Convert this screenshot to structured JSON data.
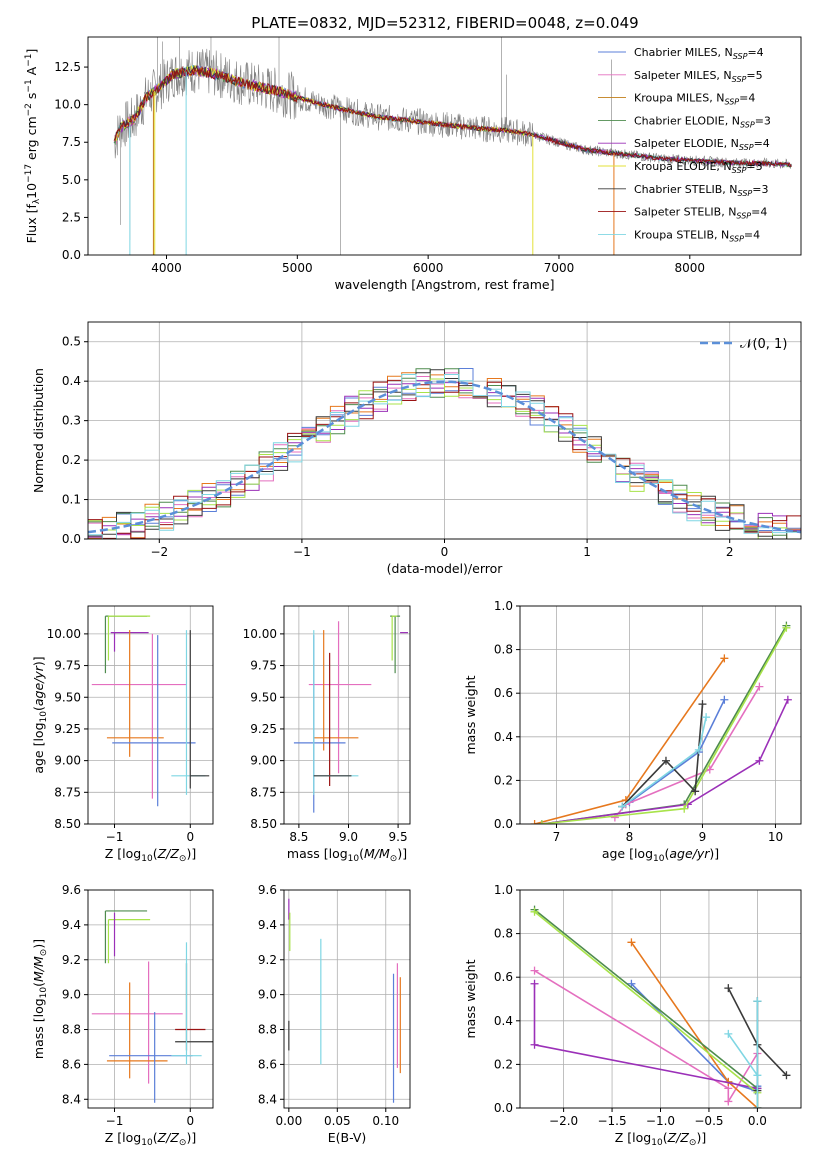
{
  "figure": {
    "title": "PLATE=0832, MJD=52312, FIBERID=0048, z=0.049"
  },
  "colors": {
    "Chabrier MILES": "#5b7fd8",
    "Salpeter MILES": "#e46fbf",
    "Kroupa MILES": "#c07d17",
    "Chabrier ELODIE": "#4e8b4e",
    "Salpeter ELODIE": "#9b30b8",
    "Kroupa ELODIE": "#e3e13a",
    "Chabrier STELIB": "#3a3a3a",
    "Salpeter STELIB": "#9a1313",
    "Kroupa STELIB": "#7fd6e3",
    "data": "#808080",
    "orange": "#e6781e",
    "lime": "#a8e34a",
    "gaussian": "#5b8fd8"
  },
  "chart_data": [
    {
      "id": "spectrum",
      "type": "line",
      "xlabel": "wavelength [Angstrom, rest frame]",
      "ylabel": "Flux [f_λ10^-17 erg cm^-2 s^-1 A^-1]",
      "xlim": [
        3400,
        8850
      ],
      "ylim": [
        0,
        14.5
      ],
      "xticks": [
        4000,
        5000,
        6000,
        7000,
        8000
      ],
      "yticks": [
        0.0,
        2.5,
        5.0,
        7.5,
        10.0,
        12.5
      ],
      "grid": false,
      "legend_position": "top-right",
      "continuum": [
        [
          3600,
          7.5
        ],
        [
          3650,
          8.5
        ],
        [
          3750,
          9.0
        ],
        [
          3850,
          10.5
        ],
        [
          3950,
          11.2
        ],
        [
          4050,
          12.0
        ],
        [
          4200,
          12.3
        ],
        [
          4400,
          12.0
        ],
        [
          4600,
          11.4
        ],
        [
          4800,
          11.0
        ],
        [
          5000,
          10.5
        ],
        [
          5200,
          10.0
        ],
        [
          5400,
          9.6
        ],
        [
          5600,
          9.2
        ],
        [
          5800,
          9.0
        ],
        [
          6000,
          8.8
        ],
        [
          6200,
          8.6
        ],
        [
          6400,
          8.4
        ],
        [
          6600,
          8.3
        ],
        [
          6800,
          8.0
        ],
        [
          7000,
          7.5
        ],
        [
          7200,
          7.0
        ],
        [
          7400,
          6.8
        ],
        [
          7600,
          6.6
        ],
        [
          7800,
          6.4
        ],
        [
          8000,
          6.3
        ],
        [
          8200,
          6.2
        ],
        [
          8400,
          6.1
        ],
        [
          8600,
          6.1
        ],
        [
          8780,
          6.0
        ]
      ],
      "legend": [
        {
          "name": "Chabrier MILES",
          "nssp": "4"
        },
        {
          "name": "Salpeter MILES",
          "nssp": "5"
        },
        {
          "name": "Kroupa MILES",
          "nssp": "4"
        },
        {
          "name": "Chabrier ELODIE",
          "nssp": "3"
        },
        {
          "name": "Salpeter ELODIE",
          "nssp": "4"
        },
        {
          "name": "Kroupa ELODIE",
          "nssp": "3"
        },
        {
          "name": "Chabrier STELIB",
          "nssp": "3"
        },
        {
          "name": "Salpeter STELIB",
          "nssp": "4"
        },
        {
          "name": "Kroupa STELIB",
          "nssp": "4"
        }
      ]
    },
    {
      "id": "residuals",
      "type": "line",
      "xlabel": "(data-model)/error",
      "ylabel": "Normed distribution",
      "xlim": [
        -2.5,
        2.5
      ],
      "ylim": [
        0,
        0.55
      ],
      "xticks": [
        -2,
        -1,
        0,
        1,
        2
      ],
      "yticks": [
        0.0,
        0.1,
        0.2,
        0.3,
        0.4,
        0.5
      ],
      "grid": true,
      "legend_position": "top-right",
      "legend_label": "𝒩(0, 1)",
      "bin_width": 0.1
    },
    {
      "id": "age_vs_Z",
      "type": "scatter",
      "xlabel": "Z [log10(Z/Z⊙)]",
      "ylabel": "age [log10(age/yr)]",
      "xlim": [
        -1.35,
        0.3
      ],
      "ylim": [
        8.5,
        10.22
      ],
      "xticks": [
        -1,
        0
      ],
      "yticks": [
        8.5,
        8.75,
        9.0,
        9.25,
        9.5,
        9.75,
        10.0
      ],
      "grid": true,
      "errorbars": [
        {
          "color": "Chabrier ELODIE",
          "x": -1.12,
          "y": 10.14,
          "x_err": [
            0,
            0.55
          ],
          "y_err": [
            0.45,
            0.0
          ]
        },
        {
          "color": "lime",
          "x": -1.08,
          "y": 10.14,
          "x_err": [
            0,
            0.55
          ],
          "y_err": [
            0.35,
            0.0
          ]
        },
        {
          "color": "Salpeter ELODIE",
          "x": -1.0,
          "y": 10.01,
          "x_err": [
            0.05,
            0.45
          ],
          "y_err": [
            0.15,
            0.0
          ]
        },
        {
          "color": "Salpeter MILES",
          "x": -0.5,
          "y": 9.6,
          "x_err": [
            0.8,
            0.45
          ],
          "y_err": [
            0.9,
            0.4
          ]
        },
        {
          "color": "orange",
          "x": -0.8,
          "y": 9.18,
          "x_err": [
            0.3,
            0.45
          ],
          "y_err": [
            0.15,
            0.85
          ]
        },
        {
          "color": "Chabrier MILES",
          "x": -0.43,
          "y": 9.14,
          "x_err": [
            0.6,
            0.5
          ],
          "y_err": [
            0.5,
            0.85
          ]
        },
        {
          "color": "Kroupa STELIB",
          "x": -0.05,
          "y": 8.88,
          "x_err": [
            0.2,
            0.25
          ],
          "y_err": [
            0.15,
            1.15
          ]
        },
        {
          "color": "Chabrier STELIB",
          "x": 0.0,
          "y": 8.88,
          "x_err": [
            0.0,
            0.25
          ],
          "y_err": [
            0.1,
            1.15
          ]
        }
      ]
    },
    {
      "id": "age_vs_mass",
      "type": "scatter",
      "xlabel": "mass [log10(M/M⊙)]",
      "xlim": [
        8.35,
        9.62
      ],
      "ylim": [
        8.5,
        10.22
      ],
      "xticks": [
        8.5,
        9.0,
        9.5
      ],
      "yticks": [
        8.5,
        8.75,
        9.0,
        9.25,
        9.5,
        9.75,
        10.0
      ],
      "grid": true,
      "errorbars": [
        {
          "color": "Chabrier ELODIE",
          "x": 9.47,
          "y": 10.14,
          "x_err": [
            0.05,
            0.05
          ],
          "y_err": [
            0.45,
            0.0
          ]
        },
        {
          "color": "lime",
          "x": 9.44,
          "y": 10.14,
          "x_err": [
            0.0,
            0.05
          ],
          "y_err": [
            0.35,
            0.0
          ]
        },
        {
          "color": "Salpeter ELODIE",
          "x": 9.52,
          "y": 10.01,
          "x_err": [
            0.0,
            0.08
          ],
          "y_err": [
            0.0,
            0.0
          ]
        },
        {
          "color": "Salpeter MILES",
          "x": 8.9,
          "y": 9.6,
          "x_err": [
            0.3,
            0.33
          ],
          "y_err": [
            0.7,
            0.5
          ]
        },
        {
          "color": "orange",
          "x": 8.75,
          "y": 9.18,
          "x_err": [
            0.1,
            0.35
          ],
          "y_err": [
            0.1,
            0.85
          ]
        },
        {
          "color": "Chabrier MILES",
          "x": 8.65,
          "y": 9.14,
          "x_err": [
            0.2,
            0.32
          ],
          "y_err": [
            0.55,
            0.85
          ]
        },
        {
          "color": "Salpeter STELIB",
          "x": 8.81,
          "y": 9.1,
          "x_err": [
            0.0,
            0.0
          ],
          "y_err": [
            0.3,
            0.75
          ]
        },
        {
          "color": "Kroupa STELIB",
          "x": 8.65,
          "y": 8.88,
          "x_err": [
            0.0,
            0.45
          ],
          "y_err": [
            0.15,
            1.15
          ]
        },
        {
          "color": "Chabrier STELIB",
          "x": 8.65,
          "y": 8.88,
          "x_err": [
            0.0,
            0.38
          ],
          "y_err": [
            0.0,
            0.0
          ]
        }
      ]
    },
    {
      "id": "weight_vs_age",
      "type": "line",
      "xlabel": "age [log10(age/yr)]",
      "ylabel": "mass weight",
      "xlim": [
        6.5,
        10.35
      ],
      "ylim": [
        0,
        1.0
      ],
      "xticks": [
        7,
        8,
        9,
        10
      ],
      "yticks": [
        0.0,
        0.2,
        0.4,
        0.6,
        0.8,
        1.0
      ],
      "grid": true,
      "series": [
        {
          "color": "Chabrier MILES",
          "x": [
            8.0,
            8.95,
            9.3
          ],
          "y": [
            0.1,
            0.33,
            0.57
          ]
        },
        {
          "color": "Salpeter MILES",
          "x": [
            7.8,
            7.95,
            9.1,
            9.78
          ],
          "y": [
            0.03,
            0.09,
            0.25,
            0.63
          ]
        },
        {
          "color": "orange",
          "x": [
            6.7,
            7.95,
            9.3
          ],
          "y": [
            0.0,
            0.11,
            0.76
          ]
        },
        {
          "color": "Chabrier ELODIE",
          "x": [
            6.8,
            8.75,
            10.15
          ],
          "y": [
            0.0,
            0.09,
            0.91
          ]
        },
        {
          "color": "Salpeter ELODIE",
          "x": [
            6.8,
            8.8,
            9.78,
            10.17
          ],
          "y": [
            0.0,
            0.09,
            0.29,
            0.57
          ]
        },
        {
          "color": "lime",
          "x": [
            6.8,
            8.75,
            10.15
          ],
          "y": [
            0.0,
            0.07,
            0.9
          ]
        },
        {
          "color": "Chabrier STELIB",
          "x": [
            7.9,
            8.5,
            8.9,
            9.0
          ],
          "y": [
            0.08,
            0.29,
            0.15,
            0.55
          ]
        },
        {
          "color": "Kroupa STELIB",
          "x": [
            7.9,
            8.95,
            9.05
          ],
          "y": [
            0.08,
            0.34,
            0.49
          ]
        }
      ]
    },
    {
      "id": "mass_vs_Z",
      "type": "scatter",
      "xlabel": "Z [log10(Z/Z⊙)]",
      "ylabel": "mass [log10(M/M⊙)]",
      "xlim": [
        -1.35,
        0.3
      ],
      "ylim": [
        8.35,
        9.6
      ],
      "xticks": [
        -1,
        0
      ],
      "yticks": [
        8.4,
        8.6,
        8.8,
        9.0,
        9.2,
        9.4,
        9.6
      ],
      "grid": true,
      "errorbars": [
        {
          "color": "Chabrier ELODIE",
          "x": -1.12,
          "y": 9.48,
          "x_err": [
            0.0,
            0.55
          ],
          "y_err": [
            0.3,
            0.0
          ]
        },
        {
          "color": "lime",
          "x": -1.08,
          "y": 9.43,
          "x_err": [
            0.0,
            0.55
          ],
          "y_err": [
            0.25,
            0.0
          ]
        },
        {
          "color": "Salpeter ELODIE",
          "x": -1.0,
          "y": 9.47,
          "x_err": [
            0.0,
            0.0
          ],
          "y_err": [
            0.25,
            0.0
          ]
        },
        {
          "color": "Salpeter MILES",
          "x": -0.55,
          "y": 8.89,
          "x_err": [
            0.75,
            0.45
          ],
          "y_err": [
            0.4,
            0.3
          ]
        },
        {
          "color": "orange",
          "x": -0.8,
          "y": 8.62,
          "x_err": [
            0.3,
            0.5
          ],
          "y_err": [
            0.1,
            0.45
          ]
        },
        {
          "color": "Chabrier MILES",
          "x": -0.47,
          "y": 8.65,
          "x_err": [
            0.6,
            0.5
          ],
          "y_err": [
            0.27,
            0.25
          ]
        },
        {
          "color": "Salpeter STELIB",
          "x": 0.0,
          "y": 8.8,
          "x_err": [
            0.2,
            0.2
          ],
          "y_err": [
            0.0,
            0.0
          ]
        },
        {
          "color": "Chabrier STELIB",
          "x": -0.05,
          "y": 8.73,
          "x_err": [
            0.15,
            0.35
          ],
          "y_err": [
            0.05,
            0.45
          ]
        },
        {
          "color": "Kroupa STELIB",
          "x": -0.05,
          "y": 8.65,
          "x_err": [
            0.2,
            0.2
          ],
          "y_err": [
            0.05,
            0.65
          ]
        }
      ]
    },
    {
      "id": "mass_vs_EBV",
      "type": "scatter",
      "xlabel": "E(B-V)",
      "xlim": [
        -0.005,
        0.125
      ],
      "ylim": [
        8.35,
        9.6
      ],
      "xticks": [
        0.0,
        0.05,
        0.1
      ],
      "xticklabels": [
        "0.00",
        "0.05",
        "0.10"
      ],
      "yticks": [
        8.4,
        8.6,
        8.8,
        9.0,
        9.2,
        9.4,
        9.6
      ],
      "grid": true,
      "vbars": [
        {
          "color": "Salpeter ELODIE",
          "x": 0.0,
          "y": [
            9.43,
            9.55
          ]
        },
        {
          "color": "lime",
          "x": 0.001,
          "y": [
            9.25,
            9.47
          ]
        },
        {
          "color": "Chabrier STELIB",
          "x": 0.0,
          "y": [
            8.68,
            8.85
          ]
        },
        {
          "color": "Kroupa STELIB",
          "x": 0.033,
          "y": [
            8.6,
            9.32
          ]
        },
        {
          "color": "Chabrier MILES",
          "x": 0.108,
          "y": [
            8.38,
            9.12
          ]
        },
        {
          "color": "Salpeter MILES",
          "x": 0.112,
          "y": [
            8.58,
            9.18
          ]
        },
        {
          "color": "orange",
          "x": 0.115,
          "y": [
            8.55,
            9.1
          ]
        }
      ]
    },
    {
      "id": "weight_vs_Z",
      "type": "line",
      "xlabel": "Z [log10(Z/Z⊙)]",
      "ylabel": "mass weight",
      "xlim": [
        -2.45,
        0.45
      ],
      "ylim": [
        0,
        1.0
      ],
      "xticks": [
        -2.0,
        -1.5,
        -1.0,
        -0.5,
        0.0
      ],
      "yticks": [
        0.0,
        0.2,
        0.4,
        0.6,
        0.8,
        1.0
      ],
      "grid": true,
      "series": [
        {
          "color": "Chabrier MILES",
          "x": [
            -1.3,
            -0.3,
            -0.02,
            0.0
          ],
          "y": [
            0.57,
            0.12,
            0.08,
            0.1
          ]
        },
        {
          "color": "Salpeter MILES",
          "x": [
            -2.3,
            -0.3,
            -0.3,
            0.0
          ],
          "y": [
            0.63,
            0.09,
            0.03,
            0.25
          ]
        },
        {
          "color": "orange",
          "x": [
            -1.3,
            -0.3,
            0.0
          ],
          "y": [
            0.76,
            0.12,
            0.0
          ]
        },
        {
          "color": "Chabrier ELODIE",
          "x": [
            -2.3,
            0.0,
            0.0
          ],
          "y": [
            0.91,
            0.09,
            0.0
          ]
        },
        {
          "color": "Salpeter ELODIE",
          "x": [
            -2.3,
            -2.3,
            0.0,
            0.0
          ],
          "y": [
            0.57,
            0.29,
            0.09,
            0.0
          ]
        },
        {
          "color": "lime",
          "x": [
            -2.3,
            0.0,
            0.0
          ],
          "y": [
            0.9,
            0.07,
            0.0
          ]
        },
        {
          "color": "Chabrier STELIB",
          "x": [
            -0.3,
            0.0,
            0.3
          ],
          "y": [
            0.55,
            0.29,
            0.15
          ]
        },
        {
          "color": "Chabrier STELIB",
          "x": [
            0.0,
            0.0
          ],
          "y": [
            0.49,
            0.08
          ]
        },
        {
          "color": "Kroupa STELIB",
          "x": [
            -0.3,
            0.0
          ],
          "y": [
            0.34,
            0.15
          ]
        },
        {
          "color": "Kroupa STELIB",
          "x": [
            0.0,
            0.0
          ],
          "y": [
            0.49,
            0.0
          ]
        }
      ]
    }
  ]
}
